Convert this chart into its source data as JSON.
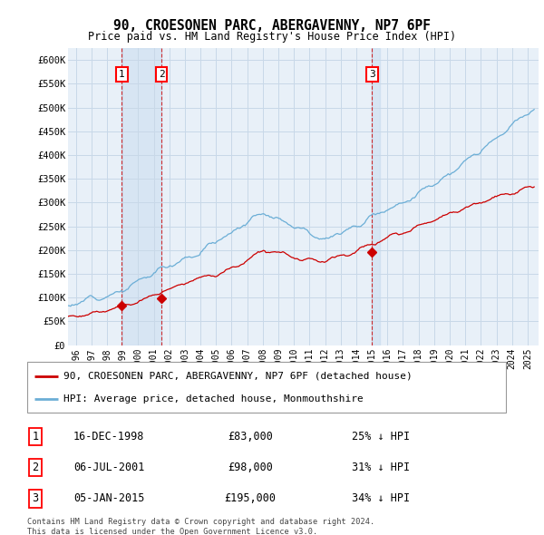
{
  "title": "90, CROESONEN PARC, ABERGAVENNY, NP7 6PF",
  "subtitle": "Price paid vs. HM Land Registry's House Price Index (HPI)",
  "ylim": [
    0,
    625000
  ],
  "yticks": [
    0,
    50000,
    100000,
    150000,
    200000,
    250000,
    300000,
    350000,
    400000,
    450000,
    500000,
    550000,
    600000
  ],
  "ytick_labels": [
    "£0",
    "£50K",
    "£100K",
    "£150K",
    "£200K",
    "£250K",
    "£300K",
    "£350K",
    "£400K",
    "£450K",
    "£500K",
    "£550K",
    "£600K"
  ],
  "hpi_color": "#6baed6",
  "price_color": "#cc0000",
  "background_color": "#ffffff",
  "chart_bg": "#e8f0f8",
  "grid_color": "#c8d8e8",
  "vline_color": "#cc0000",
  "transactions": [
    {
      "year": 1998.96,
      "price": 83000,
      "label": "1"
    },
    {
      "year": 2001.51,
      "price": 98000,
      "label": "2"
    },
    {
      "year": 2015.02,
      "price": 195000,
      "label": "3"
    }
  ],
  "table": [
    {
      "num": "1",
      "date": "16-DEC-1998",
      "price": "£83,000",
      "pct": "25% ↓ HPI"
    },
    {
      "num": "2",
      "date": "06-JUL-2001",
      "price": "£98,000",
      "pct": "31% ↓ HPI"
    },
    {
      "num": "3",
      "date": "05-JAN-2015",
      "price": "£195,000",
      "pct": "34% ↓ HPI"
    }
  ],
  "legend_line1": "90, CROESONEN PARC, ABERGAVENNY, NP7 6PF (detached house)",
  "legend_line2": "HPI: Average price, detached house, Monmouthshire",
  "footer": "Contains HM Land Registry data © Crown copyright and database right 2024.\nThis data is licensed under the Open Government Licence v3.0.",
  "hpi_seed": 12,
  "price_seed": 34
}
